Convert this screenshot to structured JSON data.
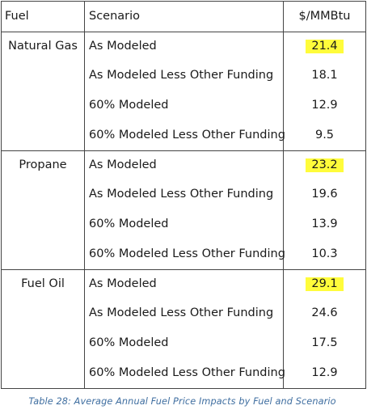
{
  "table": {
    "headers": {
      "fuel": "Fuel",
      "scenario": "Scenario",
      "price": "$/MMBtu"
    },
    "groups": [
      {
        "fuel": "Natural Gas",
        "rows": [
          {
            "scenario": "As Modeled",
            "price": "21.4",
            "highlight": true
          },
          {
            "scenario": "As Modeled Less Other Funding",
            "price": "18.1",
            "highlight": false
          },
          {
            "scenario": "60% Modeled",
            "price": "12.9",
            "highlight": false
          },
          {
            "scenario": "60% Modeled Less Other Funding",
            "price": "9.5",
            "highlight": false
          }
        ]
      },
      {
        "fuel": "Propane",
        "rows": [
          {
            "scenario": "As Modeled",
            "price": "23.2",
            "highlight": true
          },
          {
            "scenario": "As Modeled Less Other Funding",
            "price": "19.6",
            "highlight": false
          },
          {
            "scenario": "60% Modeled",
            "price": "13.9",
            "highlight": false
          },
          {
            "scenario": "60% Modeled Less Other Funding",
            "price": "10.3",
            "highlight": false
          }
        ]
      },
      {
        "fuel": "Fuel Oil",
        "rows": [
          {
            "scenario": "As Modeled",
            "price": "29.1",
            "highlight": true
          },
          {
            "scenario": "As Modeled Less Other Funding",
            "price": "24.6",
            "highlight": false
          },
          {
            "scenario": "60% Modeled",
            "price": "17.5",
            "highlight": false
          },
          {
            "scenario": "60% Modeled Less Other Funding",
            "price": "12.9",
            "highlight": false
          }
        ]
      }
    ]
  },
  "caption": "Table 28: Average Annual Fuel Price Impacts by Fuel and Scenario",
  "colors": {
    "highlight": "#fffc3b",
    "caption": "#3f6ea0",
    "border": "#444444"
  }
}
